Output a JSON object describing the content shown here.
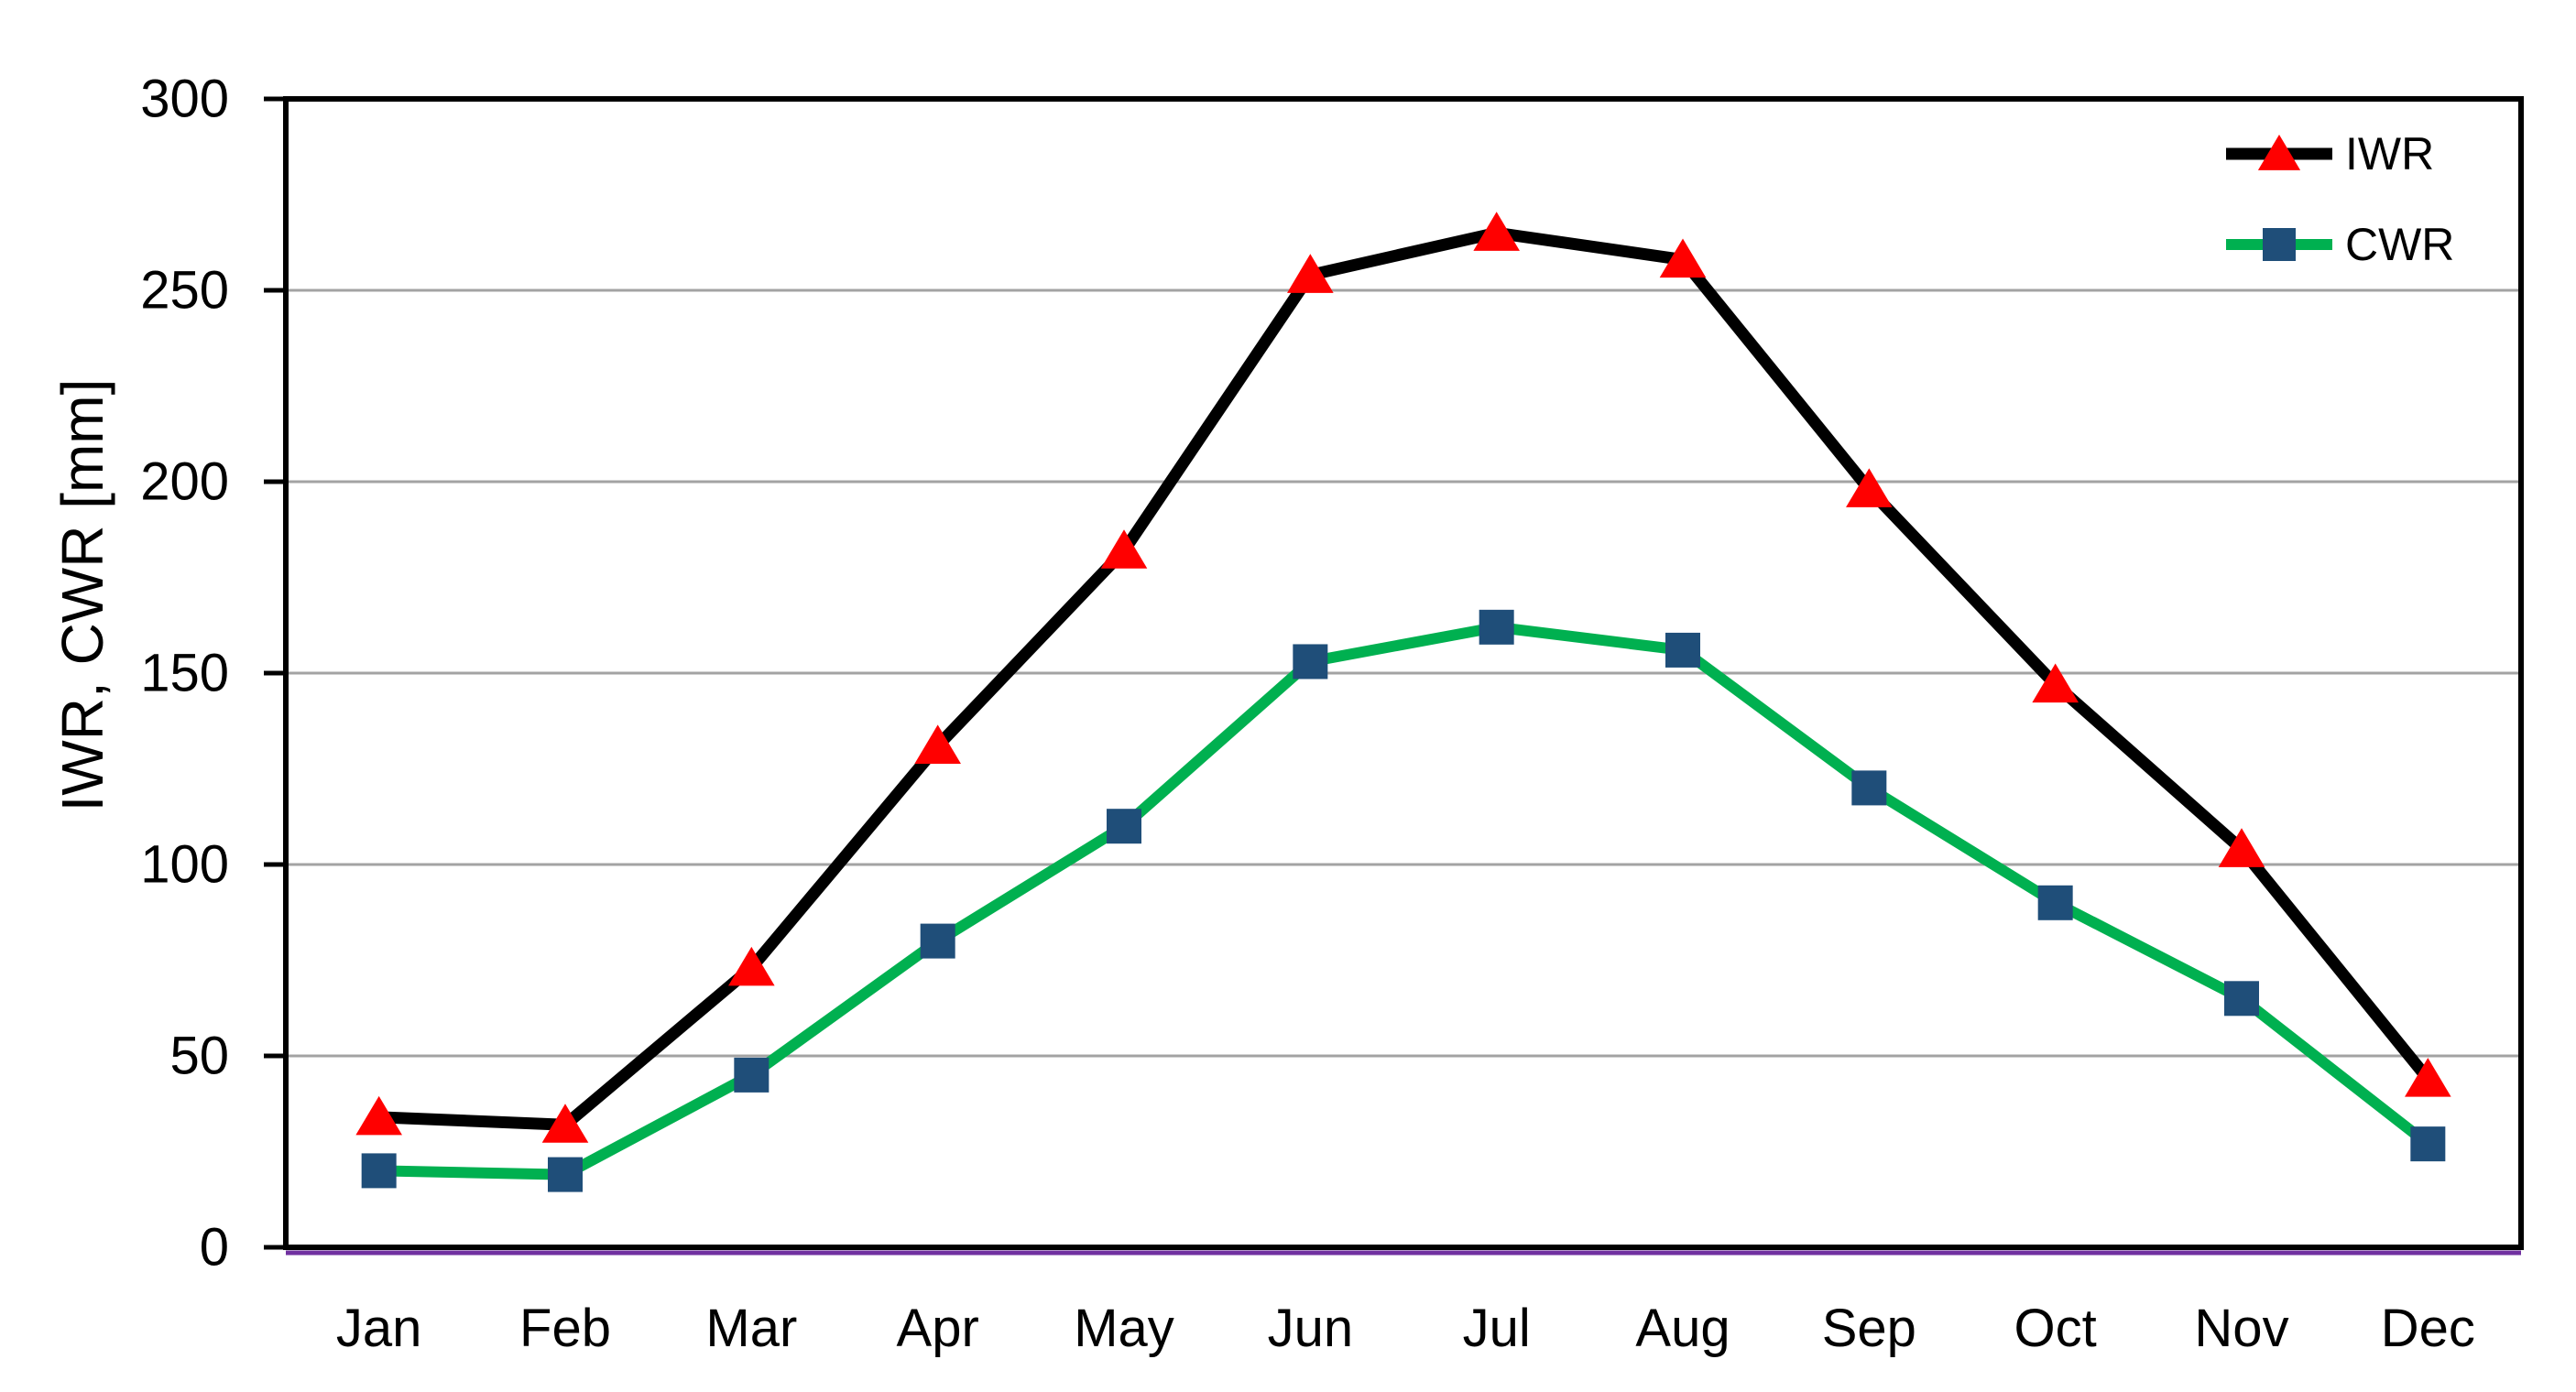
{
  "chart_data": {
    "type": "line",
    "title": "",
    "categories": [
      "Jan",
      "Feb",
      "Mar",
      "Apr",
      "May",
      "Jun",
      "Jul",
      "Aug",
      "Sep",
      "Oct",
      "Nov",
      "Dec"
    ],
    "series": [
      {
        "name": "IWR",
        "line_color": "#000000",
        "marker": "triangle",
        "marker_color": "#ff0000",
        "values": [
          34,
          32,
          73,
          131,
          182,
          254,
          265,
          258,
          198,
          147,
          104,
          44
        ]
      },
      {
        "name": "CWR",
        "line_color": "#00b050",
        "marker": "square",
        "marker_color": "#1f4e79",
        "values": [
          20,
          19,
          45,
          80,
          110,
          153,
          162,
          156,
          120,
          90,
          65,
          27
        ]
      }
    ],
    "xlabel": "",
    "ylabel": "IWR, CWR [mm]",
    "ylim": [
      0,
      300
    ],
    "yticks": [
      0,
      50,
      100,
      150,
      200,
      250,
      300
    ],
    "grid": "horizontal",
    "legend_position": "top-right-inside",
    "baseline": {
      "value": 0,
      "color": "#7030a0"
    },
    "colors": {
      "axis": "#000000",
      "gridline": "#a3a3a3",
      "text": "#000000",
      "background": "#ffffff"
    }
  }
}
